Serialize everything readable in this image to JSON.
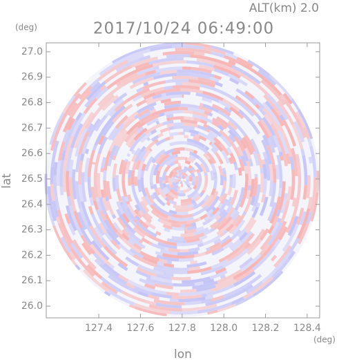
{
  "chart_data": {
    "type": "radar",
    "title": "2017/10/24 06:49:00",
    "subtitle": "ALT(km) 2.0",
    "x_label": "lon",
    "y_label": "lat",
    "x_unit": "(deg)",
    "y_unit": "(deg)",
    "xlim": [
      127.148,
      128.46
    ],
    "ylim": [
      25.954,
      27.035
    ],
    "xticks": [
      127.4,
      127.6,
      127.8,
      {
        "value": 128,
        "label": "128.0"
      },
      128.2,
      128.4
    ],
    "yticks": [
      {
        "value": 26,
        "label": "26.0"
      },
      26.1,
      26.2,
      26.3,
      26.4,
      26.5,
      26.6,
      26.7,
      26.8,
      26.9,
      {
        "value": 27,
        "label": "27.0"
      }
    ],
    "colors": [
      "#f7b3b3",
      "#c3c3f7"
    ]
  }
}
